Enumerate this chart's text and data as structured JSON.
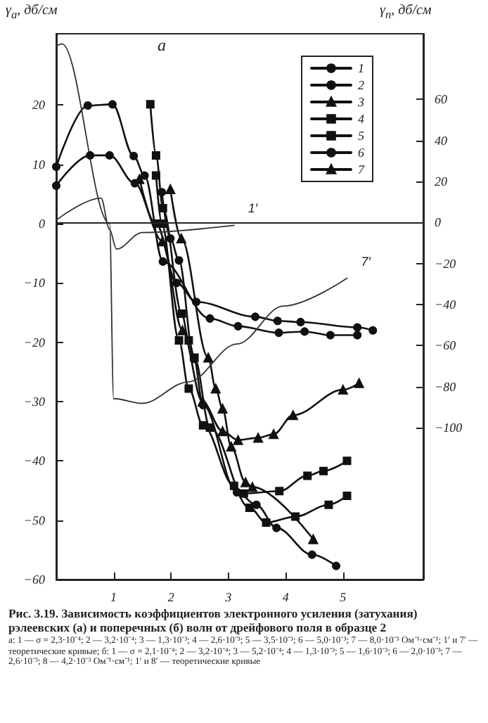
{
  "chart_data": {
    "type": "line",
    "title": "Рис. 3.19. Зависимость коэффициентов электронного усиления (затухания) рэлеевских (а) и поперечных (б) волн от дрейфового поля в образце 2",
    "ylabel": "γ$_{а}$, дб/см",
    "y2label": "γ$_{п}$, дб/см",
    "annotations": [
      "а",
      "а: 1 — σ = 2,3·10⁻⁴; 2 — 3,2·10⁻⁴; 3 — 1,3·10⁻³; 4 — 2,6·10⁻³; 5 — 3,5·10⁻³; 6 — 5,0·10⁻³; 7 — 8,0·10⁻³ Ом⁻¹·см⁻¹; 1′ и 7′ — теоретические кривые; б: 1 — σ = 2,1·10⁻⁴; 2 — 3,2·10⁻⁴; 3 — 5,2·10⁻⁴; 4 — 1,3·10⁻³; 5 — 1,6·10⁻³; 6 — 2,0·10⁻³; 7 — 2,6·10⁻³; 8 — 4,2·10⁻³ Ом⁻¹·см⁻¹; 1′ и 8′ — теоретические кривые"
    ],
    "xlim": [
      0,
      6.4
    ],
    "xticks": [
      1,
      2,
      3,
      4,
      5
    ],
    "ylim": [
      -60,
      32
    ],
    "yticks": [
      -60,
      -50,
      -40,
      -30,
      -20,
      -10,
      0,
      10,
      20
    ],
    "y2lim": [
      -174,
      92
    ],
    "y2ticks": [
      -100,
      -80,
      -60,
      -40,
      -20,
      0,
      20,
      40,
      60
    ],
    "ref_lines": [
      {
        "axis": "y2",
        "value": 0,
        "color": "#222222"
      }
    ],
    "legend": "top right",
    "grid": false,
    "line_style": "solid",
    "series": [
      {
        "name": "1",
        "color": "#111111",
        "marker": "circle",
        "x": [
          0,
          0.59,
          0.93,
          1.37,
          1.74,
          2.1,
          2.44,
          3.47,
          3.86,
          4.26,
          5.25,
          5.52
        ],
        "values": [
          6.4,
          11.5,
          11.5,
          6.8,
          0,
          -10,
          -13.2,
          -15.7,
          -16.4,
          -16.6,
          -17.5,
          -18
        ]
      },
      {
        "name": "2",
        "color": "#111111",
        "marker": "circle",
        "x": [
          0,
          0.55,
          0.98,
          1.35,
          1.54,
          1.86,
          2.68,
          3.17,
          3.88,
          4.33,
          4.78,
          5.25
        ],
        "values": [
          9.6,
          19.9,
          20.1,
          11.4,
          8.1,
          -6.4,
          -16,
          -17.3,
          -18.4,
          -18.2,
          -18.8,
          -18.8
        ]
      },
      {
        "name": "3",
        "color": "#111111",
        "marker": "triangle",
        "x": [
          1.45,
          1.85,
          2.2,
          2.55,
          2.9,
          3.17,
          3.52,
          3.79,
          4.13,
          5.0,
          5.28
        ],
        "values": [
          7.5,
          -3,
          -18,
          -30,
          -35,
          -36.5,
          -36.1,
          -35.5,
          -32.3,
          -28,
          -26.9
        ]
      },
      {
        "name": "4",
        "color": "#111111",
        "marker": "square",
        "x": [
          1.74,
          1.84,
          2.14,
          2.31,
          2.56,
          3.1,
          3.27,
          3.89,
          4.38,
          4.66,
          5.07
        ],
        "values": [
          8.1,
          0,
          -19.7,
          -27.8,
          -34,
          -44.2,
          -45.5,
          -45.1,
          -42.5,
          -41.7,
          -40
        ]
      },
      {
        "name": "5",
        "color": "#111111",
        "marker": "square",
        "x": [
          1.64,
          1.74,
          1.86,
          2.19,
          2.31,
          2.41,
          2.68,
          3.37,
          3.66,
          4.17,
          4.75,
          5.07
        ],
        "values": [
          20.1,
          11.5,
          2.6,
          -15.2,
          -19.7,
          -22.6,
          -34.4,
          -47.9,
          -50.4,
          -49.4,
          -47.4,
          -45.9
        ]
      },
      {
        "name": "6",
        "color": "#111111",
        "marker": "circle",
        "x": [
          1.84,
          1.99,
          2.14,
          2.4,
          2.56,
          3.15,
          3.49,
          3.84,
          4.46,
          4.88
        ],
        "values": [
          5.3,
          -2.5,
          -6.2,
          -22.8,
          -30.6,
          -45.3,
          -47.4,
          -51.3,
          -55.8,
          -57.7
        ]
      },
      {
        "name": "7",
        "color": "#111111",
        "marker": "triangle",
        "x": [
          1.99,
          2.18,
          2.65,
          2.78,
          2.9,
          3.05,
          3.3,
          3.42,
          4.48
        ],
        "values": [
          5.8,
          -2.5,
          -22.6,
          -27.8,
          -31.2,
          -37.6,
          -43.6,
          -44.4,
          -53.2
        ]
      },
      {
        "name": "1′",
        "color": "#333333",
        "marker": "none",
        "x": [
          0,
          0.78,
          0.93,
          1.05,
          1.5,
          3.1
        ],
        "values": [
          0.6,
          4.3,
          -1,
          -4.3,
          -1.5,
          -0.3
        ]
      },
      {
        "name": "7′",
        "color": "#333333",
        "marker": "none",
        "x": [
          0,
          0.1,
          0.93,
          1.0,
          1.5,
          2.3,
          3.15,
          3.96,
          5.07
        ],
        "values": [
          29.9,
          30.3,
          0,
          -29.5,
          -30.3,
          -26.7,
          -20.3,
          -13.9,
          -9.2
        ]
      }
    ]
  }
}
